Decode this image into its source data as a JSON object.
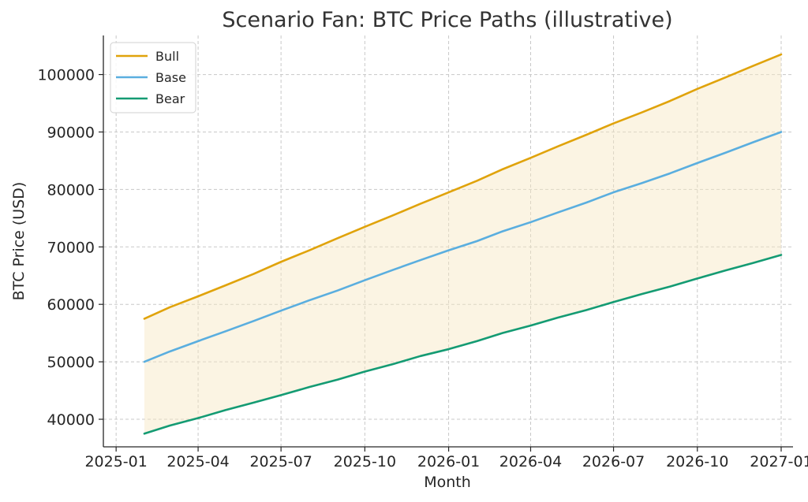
{
  "chart_data": {
    "type": "line",
    "title": "Scenario Fan: BTC Price Paths (illustrative)",
    "xlabel": "Month",
    "ylabel": "BTC Price (USD)",
    "x": [
      "2025-02",
      "2025-03",
      "2025-04",
      "2025-05",
      "2025-06",
      "2025-07",
      "2025-08",
      "2025-09",
      "2025-10",
      "2025-11",
      "2025-12",
      "2026-01",
      "2026-02",
      "2026-03",
      "2026-04",
      "2026-05",
      "2026-06",
      "2026-07",
      "2026-08",
      "2026-09",
      "2026-10",
      "2026-11",
      "2026-12",
      "2027-01"
    ],
    "x_ticks": [
      "2025-01",
      "2025-04",
      "2025-07",
      "2025-10",
      "2026-01",
      "2026-04",
      "2026-07",
      "2026-10",
      "2027-01"
    ],
    "x_tick_labels": [
      "2025-01",
      "2025-04",
      "2025-07",
      "2025-10",
      "2026-01",
      "2026-04",
      "2026-07",
      "2026-10",
      "2027-01"
    ],
    "xlim": [
      "2024-12-18",
      "2027-01-14"
    ],
    "y_ticks": [
      40000,
      50000,
      60000,
      70000,
      80000,
      90000,
      100000
    ],
    "y_tick_labels": [
      "40000",
      "50000",
      "60000",
      "70000",
      "80000",
      "90000",
      "100000"
    ],
    "ylim": [
      35200,
      106800
    ],
    "grid": true,
    "legend_position": "top-left",
    "fill_between": {
      "upper": "Bull",
      "lower": "Bear",
      "color": "#f6e7c1",
      "opacity": 0.45
    },
    "series": [
      {
        "name": "Bull",
        "color": "#e0a30b",
        "values": [
          57500,
          59500,
          61400,
          63300,
          65300,
          67400,
          69400,
          71500,
          73500,
          75500,
          77500,
          79500,
          81500,
          83500,
          85500,
          87500,
          89500,
          91500,
          93400,
          95400,
          97500,
          99500,
          101500,
          103500
        ]
      },
      {
        "name": "Base",
        "color": "#5aaedf",
        "values": [
          50000,
          51800,
          53600,
          55300,
          57100,
          58900,
          60700,
          62400,
          64200,
          66000,
          67700,
          69400,
          71000,
          72700,
          74300,
          76000,
          77700,
          79500,
          81100,
          82800,
          84600,
          86400,
          88200,
          90000
        ]
      },
      {
        "name": "Bear",
        "color": "#149b73",
        "values": [
          37500,
          38900,
          40200,
          41600,
          42900,
          44200,
          45600,
          46900,
          48300,
          49600,
          51000,
          52200,
          53600,
          55000,
          56300,
          57700,
          59000,
          60400,
          61800,
          63100,
          64500,
          65900,
          67200,
          68600
        ]
      }
    ]
  }
}
